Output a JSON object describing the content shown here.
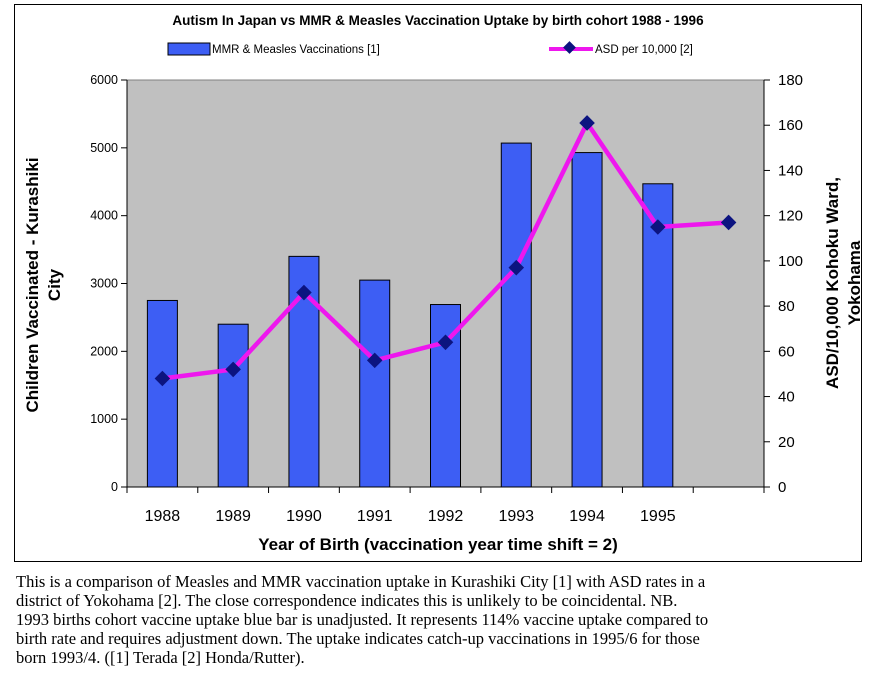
{
  "chart_data": {
    "type": "bar",
    "title": "Autism In Japan vs MMR & Measles Vaccination Uptake by birth cohort 1988 - 1996",
    "xlabel": "Year of Birth (vaccination year time shift = 2)",
    "ylabel": [
      "Children Vaccinated - Kurashiki",
      "City"
    ],
    "y2label": [
      "ASD/10,000 Kohoku Ward,",
      "Yokohama"
    ],
    "categories": [
      "1988",
      "1989",
      "1990",
      "1991",
      "1992",
      "1993",
      "1994",
      "1995",
      ""
    ],
    "ylim": [
      0,
      6000
    ],
    "y2lim": [
      0,
      180
    ],
    "yticks": [
      "0",
      "1000",
      "2000",
      "3000",
      "4000",
      "5000",
      "6000"
    ],
    "y2ticks": [
      "0",
      "20",
      "40",
      "60",
      "80",
      "100",
      "120",
      "140",
      "160",
      "180"
    ],
    "series": [
      {
        "name": "MMR & Measles Vaccinations [1]",
        "type": "bar",
        "axis": "left",
        "color": "#3d5ef4",
        "values": [
          2750,
          2400,
          3400,
          3050,
          2690,
          5070,
          4930,
          4470,
          null
        ]
      },
      {
        "name": "ASD per 10,000 [2]",
        "type": "line",
        "axis": "right",
        "color": "#ee17ee",
        "marker_color": "#0c1480",
        "values": [
          48,
          52,
          86,
          56,
          64,
          97,
          161,
          115,
          117
        ]
      }
    ],
    "legend": "top",
    "grid": false,
    "plot_background": "#c0c0c0"
  },
  "caption": [
    "This is a comparison of Measles and MMR vaccination uptake in Kurashiki City [1] with ASD rates in a",
    "district of Yokohama [2].  The close correspondence indicates this is unlikely to be coincidental.  NB.",
    "1993 births cohort vaccine uptake blue bar is unadjusted.  It represents 114% vaccine uptake compared to",
    "birth rate and requires adjustment down.  The uptake indicates catch-up vaccinations in 1995/6 for those",
    "born 1993/4.  ([1] Terada [2] Honda/Rutter)."
  ]
}
